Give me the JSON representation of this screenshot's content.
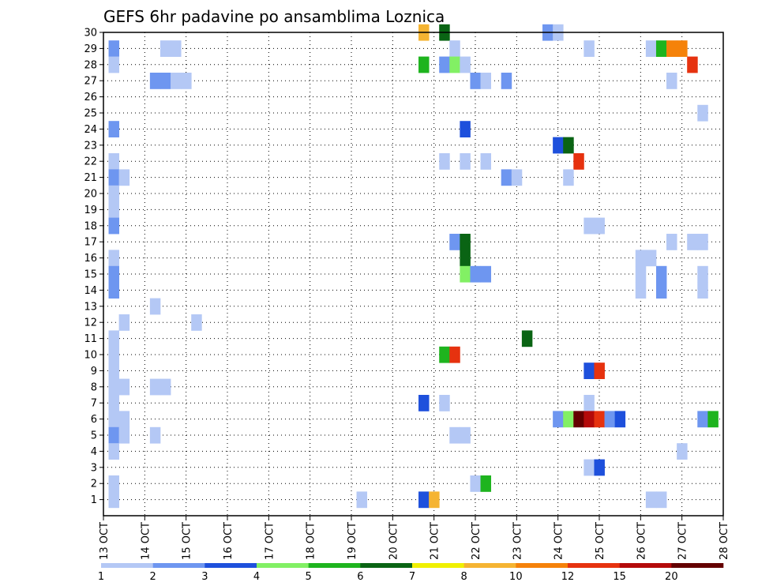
{
  "chart_data": {
    "type": "heatmap",
    "title": "GEFS 6hr padavine po ansamblima Loznica",
    "xlabel": "",
    "ylabel": "",
    "x_ticks": [
      "13 OCT",
      "14 OCT",
      "15 OCT",
      "16 OCT",
      "17 OCT",
      "18 OCT",
      "19 OCT",
      "20 OCT",
      "21 OCT",
      "22 OCT",
      "23 OCT",
      "24 OCT",
      "25 OCT",
      "26 OCT",
      "27 OCT",
      "28 OCT"
    ],
    "y_ticks": [
      "1",
      "2",
      "3",
      "4",
      "5",
      "6",
      "7",
      "8",
      "9",
      "10",
      "11",
      "12",
      "13",
      "14",
      "15",
      "16",
      "17",
      "18",
      "19",
      "20",
      "21",
      "22",
      "23",
      "24",
      "25",
      "26",
      "27",
      "28",
      "29",
      "30"
    ],
    "x_start": "13 OCT 00Z",
    "step_hours": 6,
    "ylim": [
      0,
      30
    ],
    "grid": true,
    "legend": {
      "placement": "bottom",
      "labels": [
        "1",
        "2",
        "3",
        "4",
        "5",
        "6",
        "7",
        "8",
        "10",
        "12",
        "15",
        "20"
      ],
      "colors": [
        "#b4c8f5",
        "#6e96f0",
        "#1e50dc",
        "#82f064",
        "#1eb41e",
        "#0a6414",
        "#f0f000",
        "#f5b432",
        "#f5820a",
        "#e6320f",
        "#b40a0a",
        "#640000"
      ]
    },
    "colors": {
      "c1": "#b4c8f5",
      "c2": "#6e96f0",
      "c3": "#1e50dc",
      "c4": "#82f064",
      "c5": "#1eb41e",
      "c6": "#0a6414",
      "c7": "#f0f000",
      "c8": "#f5b432",
      "c10": "#f5820a",
      "c12": "#e6320f",
      "c15": "#b40a0a",
      "c20": "#640000"
    },
    "cells": [
      {
        "member": 30,
        "period": 31,
        "level": "8"
      },
      {
        "member": 30,
        "period": 33,
        "level": "6"
      },
      {
        "member": 30,
        "period": 43,
        "level": "2"
      },
      {
        "member": 30,
        "period": 44,
        "level": "1"
      },
      {
        "member": 29,
        "period": 1,
        "level": "2"
      },
      {
        "member": 29,
        "period": 6,
        "level": "1"
      },
      {
        "member": 29,
        "period": 7,
        "level": "1"
      },
      {
        "member": 29,
        "period": 34,
        "level": "1"
      },
      {
        "member": 29,
        "period": 47,
        "level": "1"
      },
      {
        "member": 29,
        "period": 53,
        "level": "1"
      },
      {
        "member": 29,
        "period": 54,
        "level": "5"
      },
      {
        "member": 29,
        "period": 55,
        "level": "10"
      },
      {
        "member": 29,
        "period": 56,
        "level": "10"
      },
      {
        "member": 28,
        "period": 1,
        "level": "1"
      },
      {
        "member": 28,
        "period": 31,
        "level": "5"
      },
      {
        "member": 28,
        "period": 33,
        "level": "2"
      },
      {
        "member": 28,
        "period": 34,
        "level": "4"
      },
      {
        "member": 28,
        "period": 35,
        "level": "1"
      },
      {
        "member": 28,
        "period": 57,
        "level": "12"
      },
      {
        "member": 27,
        "period": 5,
        "level": "2"
      },
      {
        "member": 27,
        "period": 6,
        "level": "2"
      },
      {
        "member": 27,
        "period": 7,
        "level": "1"
      },
      {
        "member": 27,
        "period": 8,
        "level": "1"
      },
      {
        "member": 27,
        "period": 36,
        "level": "2"
      },
      {
        "member": 27,
        "period": 37,
        "level": "1"
      },
      {
        "member": 27,
        "period": 39,
        "level": "2"
      },
      {
        "member": 27,
        "period": 55,
        "level": "1"
      },
      {
        "member": 25,
        "period": 58,
        "level": "1"
      },
      {
        "member": 24,
        "period": 1,
        "level": "2"
      },
      {
        "member": 24,
        "period": 35,
        "level": "3"
      },
      {
        "member": 23,
        "period": 44,
        "level": "3"
      },
      {
        "member": 23,
        "period": 45,
        "level": "6"
      },
      {
        "member": 22,
        "period": 1,
        "level": "1"
      },
      {
        "member": 22,
        "period": 33,
        "level": "1"
      },
      {
        "member": 22,
        "period": 35,
        "level": "1"
      },
      {
        "member": 22,
        "period": 37,
        "level": "1"
      },
      {
        "member": 22,
        "period": 46,
        "level": "12"
      },
      {
        "member": 21,
        "period": 1,
        "level": "2"
      },
      {
        "member": 21,
        "period": 2,
        "level": "1"
      },
      {
        "member": 21,
        "period": 39,
        "level": "2"
      },
      {
        "member": 21,
        "period": 40,
        "level": "1"
      },
      {
        "member": 21,
        "period": 45,
        "level": "1"
      },
      {
        "member": 20,
        "period": 1,
        "level": "1"
      },
      {
        "member": 19,
        "period": 1,
        "level": "1"
      },
      {
        "member": 18,
        "period": 1,
        "level": "2"
      },
      {
        "member": 18,
        "period": 47,
        "level": "1"
      },
      {
        "member": 18,
        "period": 48,
        "level": "1"
      },
      {
        "member": 17,
        "period": 34,
        "level": "2"
      },
      {
        "member": 17,
        "period": 35,
        "level": "6"
      },
      {
        "member": 17,
        "period": 55,
        "level": "1"
      },
      {
        "member": 17,
        "period": 57,
        "level": "1"
      },
      {
        "member": 17,
        "period": 58,
        "level": "1"
      },
      {
        "member": 16,
        "period": 1,
        "level": "1"
      },
      {
        "member": 16,
        "period": 35,
        "level": "6"
      },
      {
        "member": 16,
        "period": 52,
        "level": "1"
      },
      {
        "member": 16,
        "period": 53,
        "level": "1"
      },
      {
        "member": 15,
        "period": 1,
        "level": "2"
      },
      {
        "member": 15,
        "period": 35,
        "level": "4"
      },
      {
        "member": 15,
        "period": 36,
        "level": "2"
      },
      {
        "member": 15,
        "period": 37,
        "level": "2"
      },
      {
        "member": 15,
        "period": 52,
        "level": "1"
      },
      {
        "member": 15,
        "period": 54,
        "level": "2"
      },
      {
        "member": 15,
        "period": 58,
        "level": "1"
      },
      {
        "member": 14,
        "period": 1,
        "level": "2"
      },
      {
        "member": 14,
        "period": 52,
        "level": "1"
      },
      {
        "member": 14,
        "period": 54,
        "level": "2"
      },
      {
        "member": 14,
        "period": 58,
        "level": "1"
      },
      {
        "member": 13,
        "period": 5,
        "level": "1"
      },
      {
        "member": 12,
        "period": 2,
        "level": "1"
      },
      {
        "member": 12,
        "period": 9,
        "level": "1"
      },
      {
        "member": 11,
        "period": 1,
        "level": "1"
      },
      {
        "member": 11,
        "period": 41,
        "level": "6"
      },
      {
        "member": 10,
        "period": 1,
        "level": "1"
      },
      {
        "member": 10,
        "period": 33,
        "level": "5"
      },
      {
        "member": 10,
        "period": 34,
        "level": "12"
      },
      {
        "member": 9,
        "period": 1,
        "level": "1"
      },
      {
        "member": 9,
        "period": 47,
        "level": "3"
      },
      {
        "member": 9,
        "period": 48,
        "level": "12"
      },
      {
        "member": 8,
        "period": 1,
        "level": "1"
      },
      {
        "member": 8,
        "period": 2,
        "level": "1"
      },
      {
        "member": 8,
        "period": 5,
        "level": "1"
      },
      {
        "member": 8,
        "period": 6,
        "level": "1"
      },
      {
        "member": 7,
        "period": 1,
        "level": "1"
      },
      {
        "member": 7,
        "period": 31,
        "level": "3"
      },
      {
        "member": 7,
        "period": 33,
        "level": "1"
      },
      {
        "member": 7,
        "period": 47,
        "level": "1"
      },
      {
        "member": 6,
        "period": 1,
        "level": "1"
      },
      {
        "member": 6,
        "period": 2,
        "level": "1"
      },
      {
        "member": 6,
        "period": 44,
        "level": "2"
      },
      {
        "member": 6,
        "period": 45,
        "level": "4"
      },
      {
        "member": 6,
        "period": 46,
        "level": "20"
      },
      {
        "member": 6,
        "period": 47,
        "level": "15"
      },
      {
        "member": 6,
        "period": 48,
        "level": "12"
      },
      {
        "member": 6,
        "period": 49,
        "level": "2"
      },
      {
        "member": 6,
        "period": 50,
        "level": "3"
      },
      {
        "member": 6,
        "period": 58,
        "level": "2"
      },
      {
        "member": 6,
        "period": 59,
        "level": "5"
      },
      {
        "member": 5,
        "period": 1,
        "level": "2"
      },
      {
        "member": 5,
        "period": 2,
        "level": "1"
      },
      {
        "member": 5,
        "period": 5,
        "level": "1"
      },
      {
        "member": 5,
        "period": 34,
        "level": "1"
      },
      {
        "member": 5,
        "period": 35,
        "level": "1"
      },
      {
        "member": 4,
        "period": 1,
        "level": "1"
      },
      {
        "member": 4,
        "period": 56,
        "level": "1"
      },
      {
        "member": 3,
        "period": 47,
        "level": "1"
      },
      {
        "member": 3,
        "period": 48,
        "level": "3"
      },
      {
        "member": 2,
        "period": 1,
        "level": "1"
      },
      {
        "member": 2,
        "period": 36,
        "level": "1"
      },
      {
        "member": 2,
        "period": 37,
        "level": "5"
      },
      {
        "member": 1,
        "period": 1,
        "level": "1"
      },
      {
        "member": 1,
        "period": 25,
        "level": "1"
      },
      {
        "member": 1,
        "period": 31,
        "level": "3"
      },
      {
        "member": 1,
        "period": 32,
        "level": "8"
      },
      {
        "member": 1,
        "period": 53,
        "level": "1"
      },
      {
        "member": 1,
        "period": 54,
        "level": "1"
      }
    ]
  }
}
